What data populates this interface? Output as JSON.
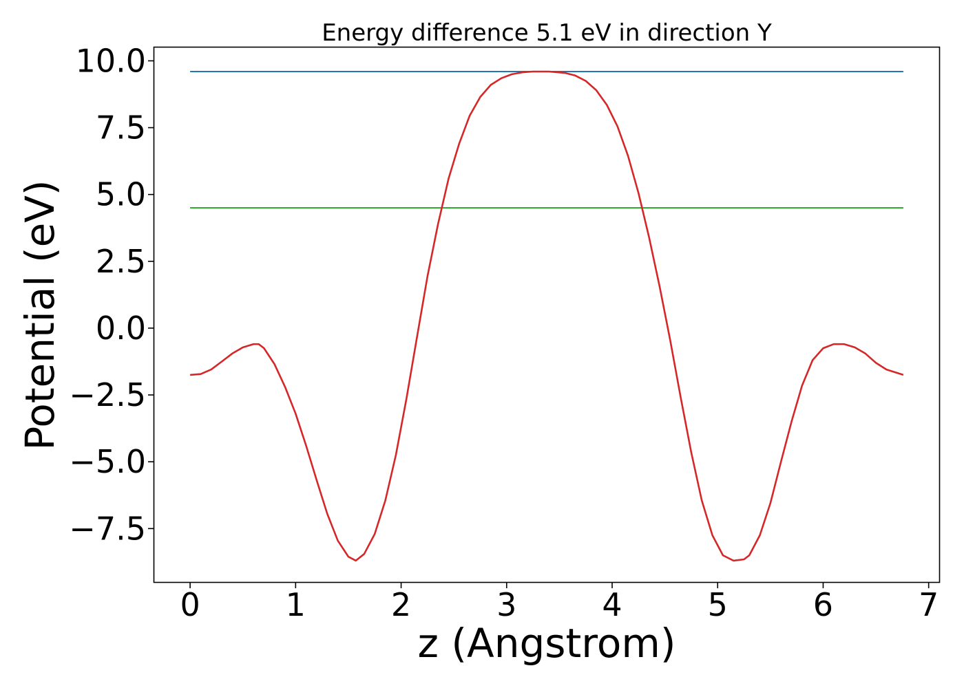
{
  "chart_data": {
    "type": "line",
    "title": "Energy difference 5.1 eV in direction Y",
    "xlabel": "z (Angstrom)",
    "ylabel": "Potential (eV)",
    "xlim": [
      -0.34,
      7.1
    ],
    "ylim": [
      -9.5,
      10.5
    ],
    "xticks": [
      0,
      1,
      2,
      3,
      4,
      5,
      6,
      7
    ],
    "xtick_labels": [
      "0",
      "1",
      "2",
      "3",
      "4",
      "5",
      "6",
      "7"
    ],
    "yticks": [
      -7.5,
      -5.0,
      -2.5,
      0.0,
      2.5,
      5.0,
      7.5,
      10.0
    ],
    "ytick_labels": [
      "−7.5",
      "−5.0",
      "−2.5",
      "0.0",
      "2.5",
      "5.0",
      "7.5",
      "10.0"
    ],
    "grid": false,
    "legend": "none",
    "series": [
      {
        "color": "#1f77b4",
        "x": [
          0,
          6.76
        ],
        "y": [
          9.6,
          9.6
        ]
      },
      {
        "color": "#2ca02c",
        "x": [
          0,
          6.76
        ],
        "y": [
          4.5,
          4.5
        ]
      },
      {
        "color": "#d62728",
        "x": [
          0,
          0.1,
          0.2,
          0.3,
          0.4,
          0.5,
          0.6,
          0.65,
          0.7,
          0.8,
          0.9,
          1.0,
          1.1,
          1.2,
          1.3,
          1.4,
          1.5,
          1.57,
          1.65,
          1.75,
          1.85,
          1.95,
          2.05,
          2.15,
          2.25,
          2.35,
          2.45,
          2.55,
          2.65,
          2.75,
          2.85,
          2.95,
          3.05,
          3.15,
          3.25,
          3.4,
          3.55,
          3.65,
          3.75,
          3.85,
          3.95,
          4.05,
          4.15,
          4.25,
          4.35,
          4.45,
          4.55,
          4.65,
          4.75,
          4.85,
          4.95,
          5.05,
          5.15,
          5.25,
          5.3,
          5.4,
          5.5,
          5.6,
          5.7,
          5.8,
          5.9,
          6.0,
          6.1,
          6.2,
          6.3,
          6.4,
          6.5,
          6.6,
          6.76
        ],
        "y": [
          -1.75,
          -1.72,
          -1.55,
          -1.25,
          -0.95,
          -0.72,
          -0.6,
          -0.6,
          -0.75,
          -1.35,
          -2.2,
          -3.2,
          -4.4,
          -5.7,
          -6.95,
          -7.95,
          -8.55,
          -8.7,
          -8.45,
          -7.7,
          -6.45,
          -4.75,
          -2.65,
          -0.35,
          1.95,
          3.9,
          5.6,
          6.9,
          7.95,
          8.65,
          9.1,
          9.35,
          9.5,
          9.57,
          9.6,
          9.6,
          9.55,
          9.45,
          9.25,
          8.9,
          8.35,
          7.55,
          6.45,
          5.05,
          3.4,
          1.55,
          -0.45,
          -2.6,
          -4.65,
          -6.45,
          -7.75,
          -8.5,
          -8.7,
          -8.65,
          -8.5,
          -7.75,
          -6.55,
          -5.0,
          -3.5,
          -2.15,
          -1.2,
          -0.75,
          -0.6,
          -0.6,
          -0.72,
          -0.95,
          -1.3,
          -1.55,
          -1.75
        ]
      }
    ]
  }
}
